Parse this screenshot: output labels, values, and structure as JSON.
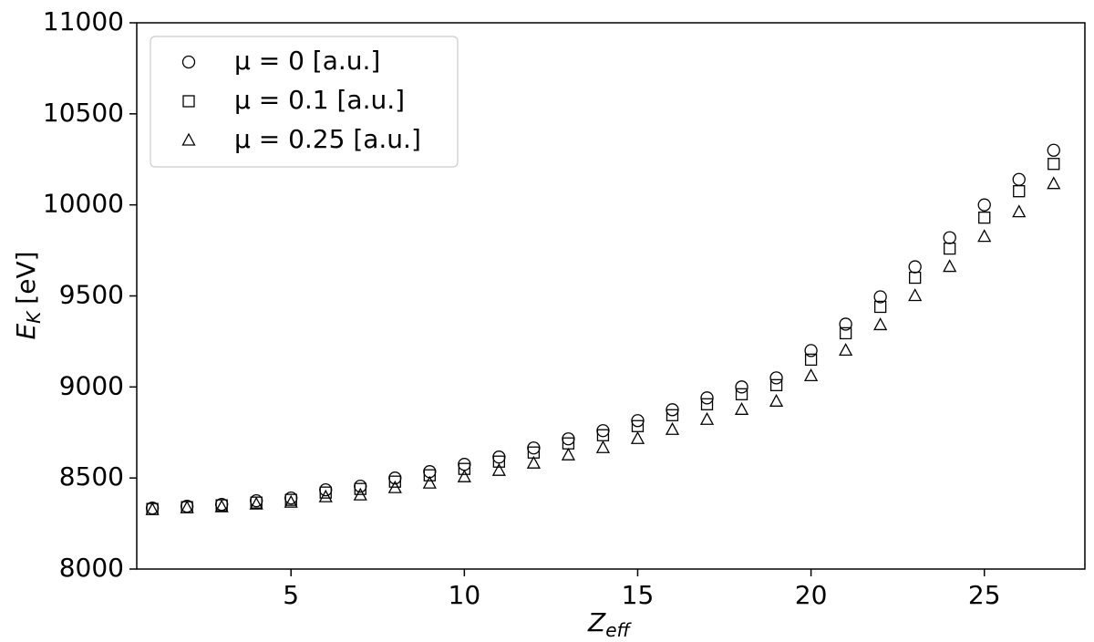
{
  "chart_data": {
    "type": "scatter",
    "xlabel": {
      "main": "Z",
      "sub": "eff"
    },
    "ylabel": {
      "main": "E",
      "sub": "K",
      "unit": "[eV]"
    },
    "x": [
      1,
      2,
      3,
      4,
      5,
      6,
      7,
      8,
      9,
      10,
      11,
      12,
      13,
      14,
      15,
      16,
      17,
      18,
      19,
      20,
      21,
      22,
      23,
      24,
      25,
      26,
      27
    ],
    "series": [
      {
        "name": "μ = 0 [a.u.]",
        "color": "#000000",
        "marker": "circle",
        "values": [
          8335,
          8345,
          8355,
          8375,
          8390,
          8435,
          8455,
          8500,
          8535,
          8575,
          8615,
          8665,
          8715,
          8760,
          8815,
          8875,
          8940,
          9000,
          9050,
          9200,
          9345,
          9495,
          9660,
          9820,
          10000,
          10140,
          10300
        ]
      },
      {
        "name": "μ = 0.1 [a.u.]",
        "color": "#000000",
        "marker": "square",
        "values": [
          8330,
          8340,
          8350,
          8365,
          8380,
          8420,
          8440,
          8480,
          8515,
          8550,
          8590,
          8640,
          8690,
          8735,
          8785,
          8845,
          8905,
          8960,
          9010,
          9150,
          9295,
          9440,
          9600,
          9760,
          9930,
          10075,
          10225
        ]
      },
      {
        "name": "μ = 0.25 [a.u.]",
        "color": "#000000",
        "marker": "triangle",
        "values": [
          8325,
          8335,
          8340,
          8355,
          8365,
          8395,
          8405,
          8445,
          8470,
          8505,
          8540,
          8580,
          8625,
          8665,
          8715,
          8765,
          8820,
          8875,
          8920,
          9060,
          9200,
          9340,
          9500,
          9660,
          9825,
          9960,
          10115
        ]
      }
    ],
    "xlim": [
      0.55,
      27.9
    ],
    "xticks": [
      5,
      10,
      15,
      20,
      25
    ],
    "ylim": [
      8000,
      11000
    ],
    "yticks": [
      8000,
      8500,
      9000,
      9500,
      10000,
      10500,
      11000
    ],
    "legend": "upper left"
  }
}
